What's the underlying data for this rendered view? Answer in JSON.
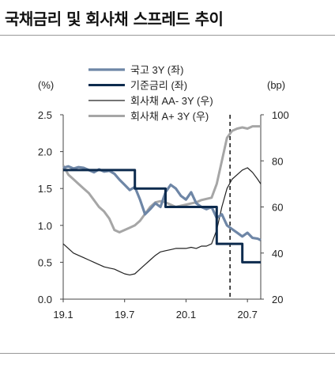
{
  "title": "국채금리 및 회사채 스프레드 추이",
  "chart_data": {
    "type": "line",
    "left_unit": "(%)",
    "right_unit": "(bp)",
    "x_ticks": [
      "19.1",
      "19.7",
      "20.1",
      "20.7"
    ],
    "x_range": [
      0,
      19.3
    ],
    "x_tick_positions": [
      0,
      6,
      12,
      18
    ],
    "y_left": {
      "range": [
        0,
        2.5
      ],
      "ticks": [
        "0.0",
        "0.5",
        "1.0",
        "1.5",
        "2.0",
        "2.5"
      ]
    },
    "y_right": {
      "range": [
        20,
        100
      ],
      "ticks": [
        "20",
        "40",
        "60",
        "80",
        "100"
      ]
    },
    "vline_x": 16.3,
    "series": [
      {
        "name": "국고 3Y (좌)",
        "axis": "left",
        "color": "#6e86a6",
        "width": 3.2,
        "step": false,
        "x": [
          0,
          0.5,
          1,
          1.5,
          2,
          2.5,
          3,
          3.5,
          4,
          4.5,
          5,
          5.5,
          6,
          6.5,
          7,
          7.5,
          8,
          8.5,
          9,
          9.5,
          10,
          10.5,
          11,
          11.5,
          12,
          12.5,
          13,
          13.5,
          14,
          14.5,
          15,
          15.5,
          16,
          16.5,
          17,
          17.5,
          18,
          18.5,
          19,
          19.3
        ],
        "values": [
          1.78,
          1.8,
          1.77,
          1.79,
          1.78,
          1.75,
          1.72,
          1.76,
          1.73,
          1.74,
          1.7,
          1.62,
          1.55,
          1.48,
          1.52,
          1.35,
          1.15,
          1.22,
          1.3,
          1.25,
          1.45,
          1.55,
          1.5,
          1.4,
          1.35,
          1.45,
          1.3,
          1.25,
          1.22,
          1.25,
          1.1,
          1.15,
          1.0,
          0.95,
          0.9,
          0.85,
          0.9,
          0.83,
          0.82,
          0.8
        ]
      },
      {
        "name": "기준금리 (좌)",
        "axis": "left",
        "color": "#0d2b4e",
        "width": 3,
        "step": true,
        "x": [
          0,
          7,
          10,
          15,
          17.5,
          19.3
        ],
        "values": [
          1.75,
          1.5,
          1.25,
          0.75,
          0.5,
          0.5
        ]
      },
      {
        "name": "회사채 AA- 3Y (우)",
        "axis": "right",
        "color": "#222222",
        "width": 1.2,
        "step": false,
        "x": [
          0,
          0.5,
          1,
          1.5,
          2,
          2.5,
          3,
          3.5,
          4,
          4.5,
          5,
          5.5,
          6,
          6.5,
          7,
          7.5,
          8,
          8.5,
          9,
          9.5,
          10,
          10.5,
          11,
          11.5,
          12,
          12.5,
          13,
          13.5,
          14,
          14.5,
          15,
          15.5,
          16,
          16.5,
          17,
          17.5,
          18,
          18.5,
          19,
          19.3
        ],
        "values": [
          44,
          42,
          40,
          39,
          38,
          37,
          36,
          35,
          34,
          33.5,
          33,
          32,
          31,
          30.5,
          31,
          33,
          35,
          37,
          39,
          40.5,
          41,
          41.5,
          42,
          42,
          42,
          42.5,
          42,
          43,
          43,
          44,
          50,
          60,
          68,
          72,
          74,
          76,
          77,
          75,
          72,
          70
        ]
      },
      {
        "name": "회사채 A+ 3Y (우)",
        "axis": "right",
        "color": "#a6a6a6",
        "width": 3,
        "step": false,
        "x": [
          0,
          0.5,
          1,
          1.5,
          2,
          2.5,
          3,
          3.5,
          4,
          4.5,
          5,
          5.5,
          6,
          6.5,
          7,
          7.5,
          8,
          8.5,
          9,
          9.5,
          10,
          10.5,
          11,
          11.5,
          12,
          12.5,
          13,
          13.5,
          14,
          14.5,
          15,
          15.5,
          16,
          16.5,
          17,
          17.5,
          18,
          18.5,
          19,
          19.3
        ],
        "values": [
          78,
          74,
          72,
          70,
          68,
          66,
          63,
          60,
          58,
          55,
          50,
          49,
          50,
          51,
          52,
          54,
          57,
          60,
          62,
          62.5,
          62,
          61,
          60,
          60.5,
          61,
          61.5,
          62,
          63,
          63.5,
          64,
          70,
          80,
          90,
          93,
          94,
          94.5,
          94,
          95,
          95,
          95
        ]
      }
    ],
    "legend_position": "top-center"
  }
}
